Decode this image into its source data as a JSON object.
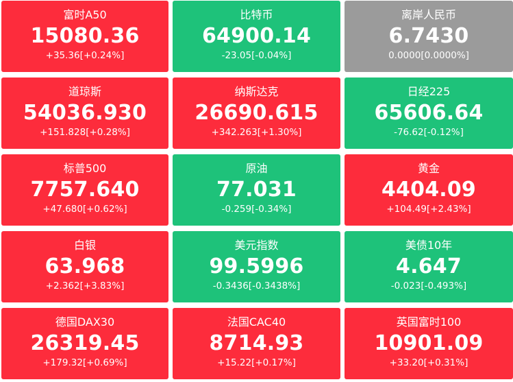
{
  "colors": {
    "up": "#fd2c3c",
    "down": "#1ec27a",
    "flat": "#9b9b9b"
  },
  "tiles": [
    {
      "name": "富时A50",
      "price": "15080.36",
      "change": "+35.36[+0.24%]",
      "trend": "up"
    },
    {
      "name": "比特币",
      "price": "64900.14",
      "change": "-23.05[-0.04%]",
      "trend": "down"
    },
    {
      "name": "离岸人民币",
      "price": "6.7430",
      "change": "0.0000[0.0000%]",
      "trend": "flat"
    },
    {
      "name": "道琼斯",
      "price": "54036.930",
      "change": "+151.828[+0.28%]",
      "trend": "up"
    },
    {
      "name": "纳斯达克",
      "price": "26690.615",
      "change": "+342.263[+1.30%]",
      "trend": "up"
    },
    {
      "name": "日经225",
      "price": "65606.64",
      "change": "-76.62[-0.12%]",
      "trend": "down"
    },
    {
      "name": "标普500",
      "price": "7757.640",
      "change": "+47.680[+0.62%]",
      "trend": "up"
    },
    {
      "name": "原油",
      "price": "77.031",
      "change": "-0.259[-0.34%]",
      "trend": "down"
    },
    {
      "name": "黄金",
      "price": "4404.09",
      "change": "+104.49[+2.43%]",
      "trend": "up"
    },
    {
      "name": "白银",
      "price": "63.968",
      "change": "+2.362[+3.83%]",
      "trend": "up"
    },
    {
      "name": "美元指数",
      "price": "99.5996",
      "change": "-0.3436[-0.3438%]",
      "trend": "down"
    },
    {
      "name": "美债10年",
      "price": "4.647",
      "change": "-0.023[-0.493%]",
      "trend": "down"
    },
    {
      "name": "德国DAX30",
      "price": "26319.45",
      "change": "+179.32[+0.69%]",
      "trend": "up"
    },
    {
      "name": "法国CAC40",
      "price": "8714.93",
      "change": "+15.22[+0.17%]",
      "trend": "up"
    },
    {
      "name": "英国富时100",
      "price": "10901.09",
      "change": "+33.20[+0.31%]",
      "trend": "up"
    }
  ]
}
